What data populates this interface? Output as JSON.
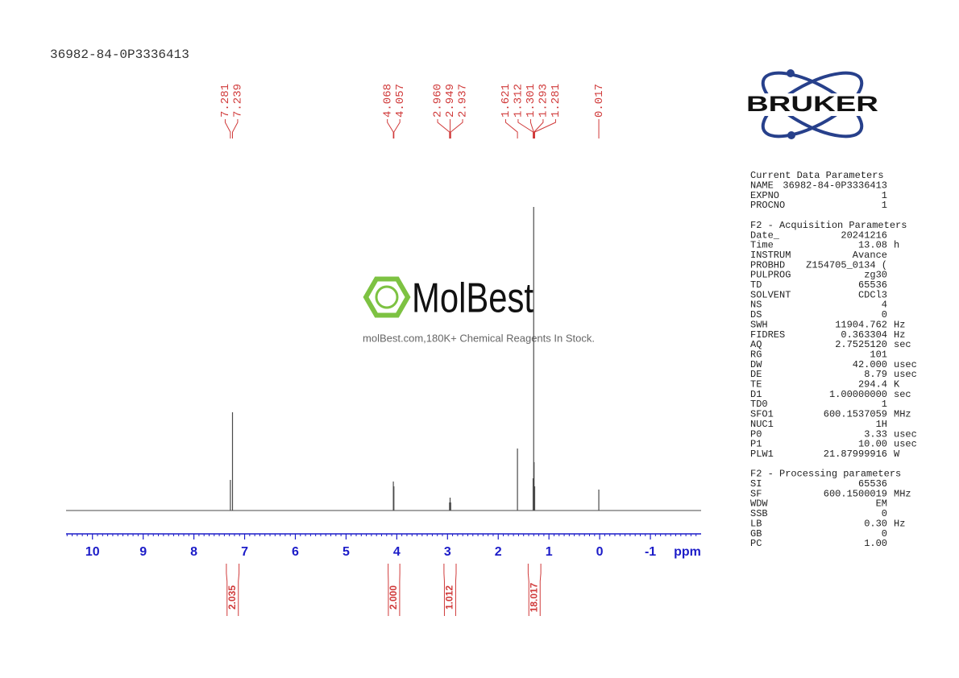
{
  "chart_data": {
    "type": "nmr",
    "title": "36982-84-0P3336413",
    "x_label": "ppm",
    "xlim": [
      10.52,
      -2.0
    ],
    "xticks": [
      10,
      9,
      8,
      7,
      6,
      5,
      4,
      3,
      2,
      1,
      0,
      -1
    ],
    "ylim": [
      0,
      400
    ],
    "axis_color": "#1c1cc8",
    "annotation_color": "#d03a3a",
    "spectrum": {
      "color": "#4a4a4a",
      "x": [
        7.281,
        7.239,
        4.068,
        4.057,
        2.96,
        2.949,
        2.937,
        1.621,
        1.312,
        1.301,
        1.293,
        1.281,
        0.017
      ],
      "values": [
        38,
        122,
        36,
        30,
        10,
        16,
        10,
        77,
        40,
        377,
        60,
        30,
        26
      ]
    },
    "peaks": {
      "values": [
        7.281,
        7.239,
        4.068,
        4.057,
        2.96,
        2.949,
        2.937,
        1.621,
        1.312,
        1.301,
        1.293,
        1.281,
        0.017
      ],
      "value_labels": [
        "7.281",
        "7.239",
        "4.068",
        "4.057",
        "2.960",
        "2.949",
        "2.937",
        "1.621",
        "1.312",
        "1.301",
        "1.293",
        "1.281",
        "0.017"
      ]
    },
    "integrals": {
      "ranges": [
        [
          7.36,
          7.11
        ],
        [
          4.17,
          3.94
        ],
        [
          3.07,
          2.83
        ],
        [
          1.41,
          1.16
        ]
      ],
      "values": [
        2.035,
        2.0,
        1.012,
        18.017
      ],
      "value_labels": [
        "2.035",
        "2.000",
        "1.012",
        "18.017"
      ]
    }
  },
  "logo": "BRUKER",
  "watermark": {
    "brand": "MolBest",
    "tagline": "molBest.com,180K+ Chemical Reagents In Stock."
  },
  "parameters": [
    {
      "title": "Current Data Parameters",
      "rows": [
        [
          "NAME",
          "36982-84-0P3336413"
        ],
        [
          "EXPNO",
          "1"
        ],
        [
          "PROCNO",
          "1"
        ]
      ]
    },
    {
      "title": "F2 - Acquisition Parameters",
      "rows": [
        [
          "Date_",
          "20241216"
        ],
        [
          "Time",
          "13.08",
          "h"
        ],
        [
          "INSTRUM",
          "Avance"
        ],
        [
          "PROBHD",
          "Z154705_0134 ("
        ],
        [
          "PULPROG",
          "zg30"
        ],
        [
          "TD",
          "65536"
        ],
        [
          "SOLVENT",
          "CDCl3"
        ],
        [
          "NS",
          "4"
        ],
        [
          "DS",
          "0"
        ],
        [
          "SWH",
          "11904.762",
          "Hz"
        ],
        [
          "FIDRES",
          "0.363304",
          "Hz"
        ],
        [
          "AQ",
          "2.7525120",
          "sec"
        ],
        [
          "RG",
          "101"
        ],
        [
          "DW",
          "42.000",
          "usec"
        ],
        [
          "DE",
          "8.79",
          "usec"
        ],
        [
          "TE",
          "294.4",
          "K"
        ],
        [
          "D1",
          "1.00000000",
          "sec"
        ],
        [
          "TD0",
          "1"
        ],
        [
          "SFO1",
          "600.1537059",
          "MHz"
        ],
        [
          "NUC1",
          "1H"
        ],
        [
          "P0",
          "3.33",
          "usec"
        ],
        [
          "P1",
          "10.00",
          "usec"
        ],
        [
          "PLW1",
          "21.87999916",
          "W"
        ]
      ]
    },
    {
      "title": "F2 - Processing parameters",
      "rows": [
        [
          "SI",
          "65536"
        ],
        [
          "SF",
          "600.1500019",
          "MHz"
        ],
        [
          "WDW",
          "EM"
        ],
        [
          "SSB",
          "0"
        ],
        [
          "LB",
          "0.30",
          "Hz"
        ],
        [
          "GB",
          "0"
        ],
        [
          "PC",
          "1.00"
        ]
      ]
    }
  ]
}
